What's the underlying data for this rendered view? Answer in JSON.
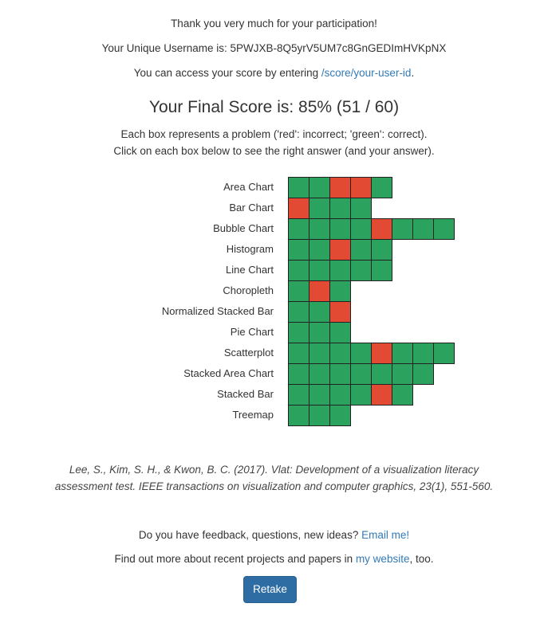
{
  "header": {
    "thanks": "Thank you very much for your participation!",
    "username_prefix": "Your Unique Username is: ",
    "username": "5PWJXB-8Q5yrV5UM7c8GnGEDImHVKpNX",
    "access_prefix": "You can access your score by entering ",
    "access_link": "/score/your-user-id",
    "access_suffix": "."
  },
  "score": {
    "title": "Your Final Score is: 85% (51 / 60)",
    "legend_line1": "Each box represents a problem ('red': incorrect; 'green': correct).",
    "legend_line2": "Click on each box below to see the right answer (and your answer)."
  },
  "colors": {
    "correct": "#2ca25f",
    "incorrect": "#e34a33",
    "button": "#2e6da4",
    "link": "#337ab7"
  },
  "grid": [
    {
      "label": "Area Chart",
      "results": [
        "green",
        "green",
        "red",
        "red",
        "green"
      ]
    },
    {
      "label": "Bar Chart",
      "results": [
        "red",
        "green",
        "green",
        "green"
      ]
    },
    {
      "label": "Bubble Chart",
      "results": [
        "green",
        "green",
        "green",
        "green",
        "red",
        "green",
        "green",
        "green"
      ]
    },
    {
      "label": "Histogram",
      "results": [
        "green",
        "green",
        "red",
        "green",
        "green"
      ]
    },
    {
      "label": "Line Chart",
      "results": [
        "green",
        "green",
        "green",
        "green",
        "green"
      ]
    },
    {
      "label": "Choropleth",
      "results": [
        "green",
        "red",
        "green"
      ]
    },
    {
      "label": "Normalized Stacked Bar",
      "results": [
        "green",
        "green",
        "red"
      ]
    },
    {
      "label": "Pie Chart",
      "results": [
        "green",
        "green",
        "green"
      ]
    },
    {
      "label": "Scatterplot",
      "results": [
        "green",
        "green",
        "green",
        "green",
        "red",
        "green",
        "green",
        "green"
      ]
    },
    {
      "label": "Stacked Area Chart",
      "results": [
        "green",
        "green",
        "green",
        "green",
        "green",
        "green",
        "green"
      ]
    },
    {
      "label": "Stacked Bar",
      "results": [
        "green",
        "green",
        "green",
        "green",
        "red",
        "green"
      ]
    },
    {
      "label": "Treemap",
      "results": [
        "green",
        "green",
        "green"
      ]
    }
  ],
  "citation": {
    "line1": "Lee, S., Kim, S. H., & Kwon, B. C. (2017). Vlat: Development of a visualization literacy",
    "line2": "assessment test. IEEE transactions on visualization and computer graphics, 23(1), 551-560."
  },
  "footer": {
    "feedback_prefix": "Do you have feedback, questions, new ideas? ",
    "feedback_link": "Email me!",
    "more_prefix": "Find out more about recent projects and papers in ",
    "more_link": "my website",
    "more_suffix": ", too.",
    "retake_label": "Retake"
  }
}
